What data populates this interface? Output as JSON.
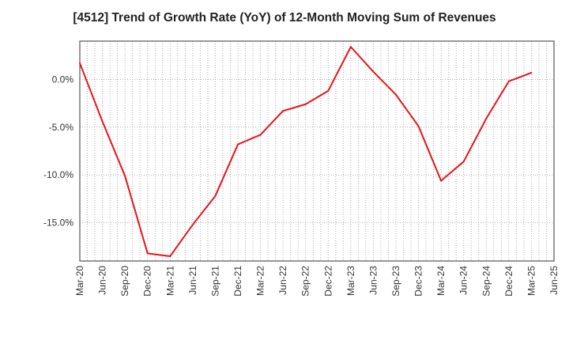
{
  "chart_data": {
    "type": "line",
    "title": "[4512]  Trend of Growth Rate (YoY) of 12-Month Moving Sum of Revenues",
    "xlabel": "",
    "ylabel": "",
    "x_ticks": [
      "Mar-20",
      "Jun-20",
      "Sep-20",
      "Dec-20",
      "Mar-21",
      "Jun-21",
      "Sep-21",
      "Dec-21",
      "Mar-22",
      "Jun-22",
      "Sep-22",
      "Dec-22",
      "Mar-23",
      "Jun-23",
      "Sep-23",
      "Dec-23",
      "Mar-24",
      "Jun-24",
      "Sep-24",
      "Dec-24",
      "Mar-25",
      "Jun-25"
    ],
    "y_ticks": [
      0,
      -5,
      -10,
      -15
    ],
    "y_tick_labels": [
      "0.0%",
      "-5.0%",
      "-10.0%",
      "-15.0%"
    ],
    "ylim": [
      -19.0,
      4.0
    ],
    "grid": true,
    "series": [
      {
        "color": "#e8141b",
        "x": [
          "Mar-20",
          "Jun-20",
          "Sep-20",
          "Dec-20",
          "Mar-21",
          "Jun-21",
          "Sep-21",
          "Dec-21",
          "Mar-22",
          "Jun-22",
          "Sep-22",
          "Dec-22",
          "Mar-23",
          "Jun-23",
          "Sep-23",
          "Dec-23",
          "Mar-24",
          "Jun-24",
          "Sep-24",
          "Dec-24",
          "Mar-25"
        ],
        "values": [
          1.7,
          -4.4,
          -10.1,
          -18.2,
          -18.5,
          -15.2,
          -12.2,
          -6.8,
          -5.8,
          -3.3,
          -2.6,
          -1.2,
          3.4,
          0.8,
          -1.6,
          -4.9,
          -10.6,
          -8.6,
          -4.1,
          -0.2,
          0.7
        ]
      }
    ]
  }
}
